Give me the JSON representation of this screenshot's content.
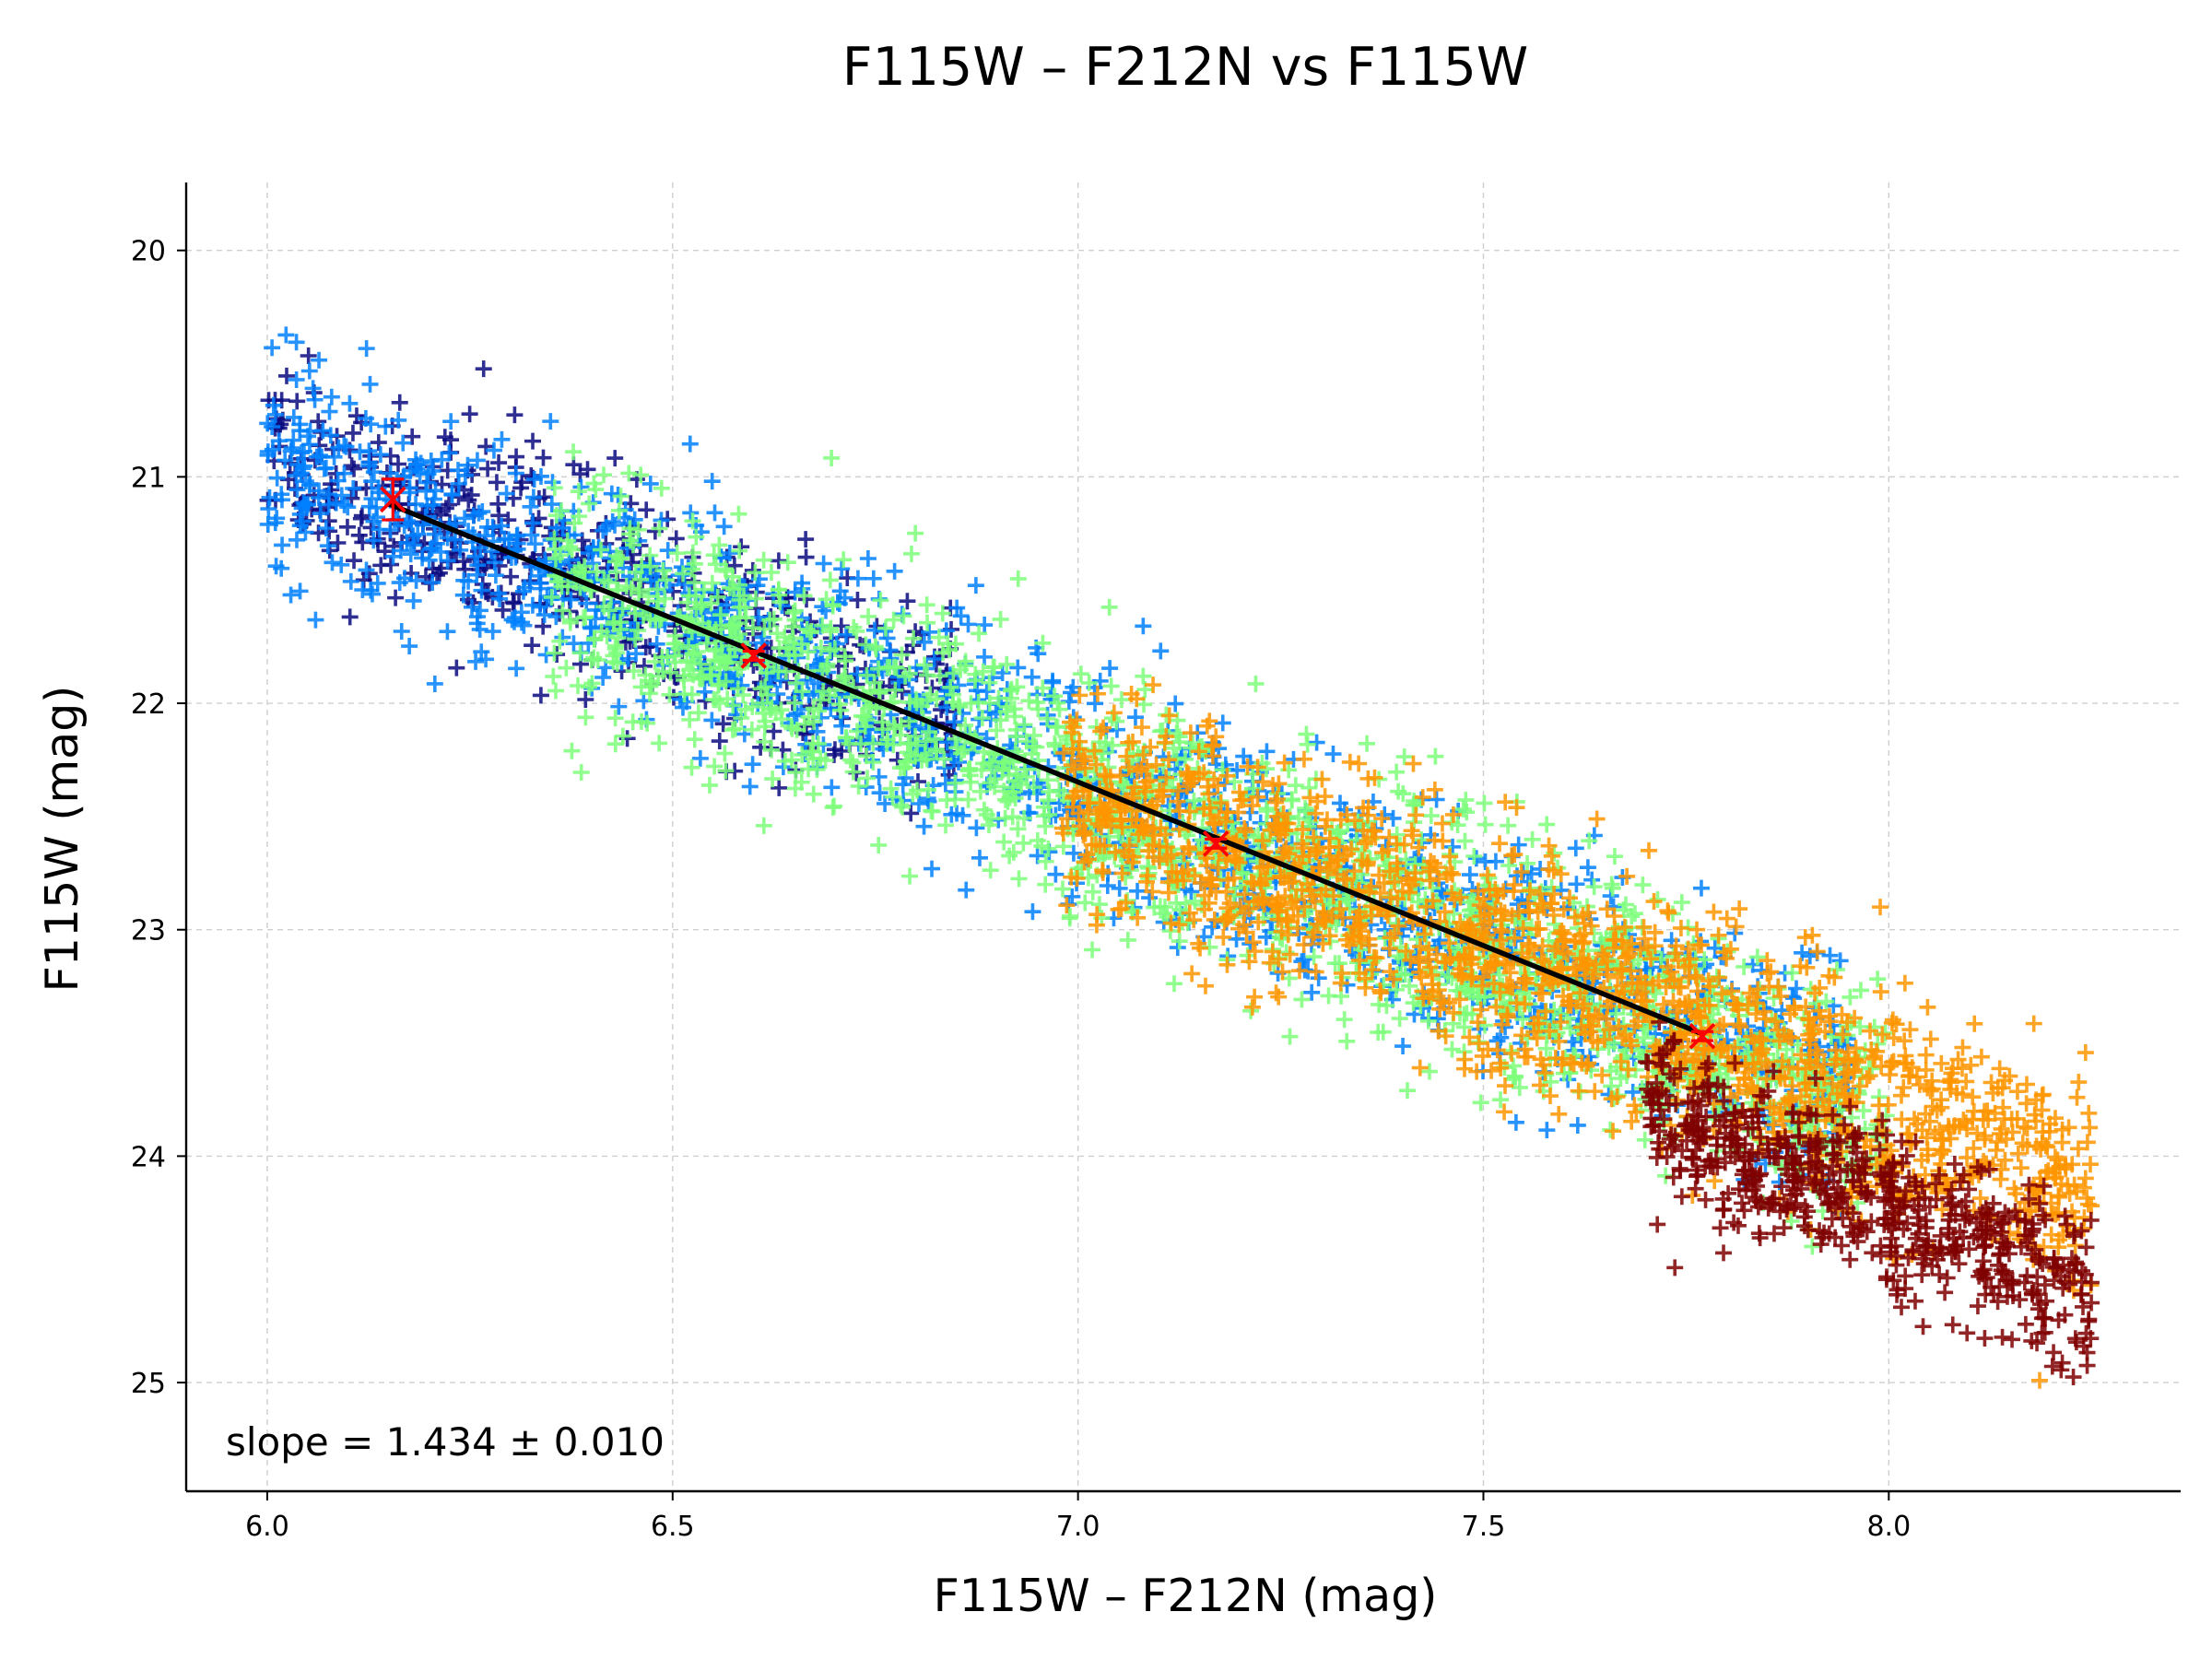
{
  "chart_data": {
    "type": "scatter",
    "title": "F115W – F212N vs F115W",
    "xlabel": "F115W – F212N (mag)",
    "ylabel": "F115W (mag)",
    "xlim": [
      5.9,
      8.36
    ],
    "ylim": [
      25.48,
      19.7
    ],
    "y_inverted": true,
    "grid": true,
    "xticks": [
      6.0,
      6.5,
      7.0,
      7.5,
      8.0
    ],
    "xtick_labels": [
      "6.0",
      "6.5",
      "7.0",
      "7.5",
      "8.0"
    ],
    "yticks": [
      20,
      21,
      22,
      23,
      24,
      25
    ],
    "ytick_labels": [
      "20",
      "21",
      "22",
      "23",
      "24",
      "25"
    ],
    "marker": "plus",
    "groups": [
      {
        "color": "#0a0a80",
        "x_range": [
          6.0,
          6.85
        ],
        "center": [
          6.15,
          21.1
        ],
        "approx_count": 520
      },
      {
        "color": "#0080ff",
        "x_range": [
          6.0,
          7.95
        ],
        "center": [
          6.6,
          21.78
        ],
        "approx_count": 1500
      },
      {
        "color": "#7dff7a",
        "x_range": [
          6.35,
          8.0
        ],
        "center": [
          7.17,
          22.62
        ],
        "approx_count": 1700
      },
      {
        "color": "#ff9500",
        "x_range": [
          6.98,
          8.25
        ],
        "center": [
          7.77,
          23.47
        ],
        "approx_count": 1500
      },
      {
        "color": "#7f0000",
        "x_range": [
          7.7,
          8.25
        ],
        "center": [
          8.08,
          24.35
        ],
        "approx_count": 600
      }
    ],
    "fit_line": {
      "color": "#000000",
      "x": [
        6.15,
        7.77
      ],
      "y": [
        21.12,
        23.46
      ]
    },
    "bin_points": {
      "color": "#ff0000",
      "points": [
        {
          "x": 6.155,
          "y": 21.1,
          "yerr": 0.09
        },
        {
          "x": 6.6,
          "y": 21.79,
          "yerr": 0.02
        },
        {
          "x": 7.17,
          "y": 22.62,
          "yerr": 0.02
        },
        {
          "x": 7.77,
          "y": 23.47,
          "yerr": 0.02
        }
      ]
    },
    "annotation": "slope = 1.434 ± 0.010"
  }
}
